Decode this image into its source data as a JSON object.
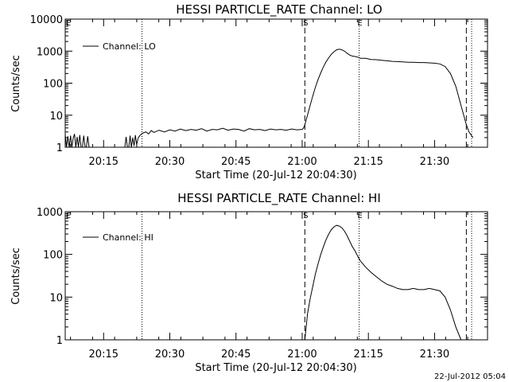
{
  "footer": {
    "timestamp": "22-Jul-2012 05:04"
  },
  "chart_data": [
    {
      "type": "line",
      "title": "HESSI PARTICLE_RATE Channel: LO",
      "xlabel": "Start Time (20-Jul-12 20:04:30)",
      "ylabel": "Counts/sec",
      "y_scale": "log",
      "xlim": [
        20.105,
        21.7
      ],
      "ylim": [
        1,
        10000
      ],
      "y_ticks": [
        {
          "v": 1,
          "label": "1"
        },
        {
          "v": 10,
          "label": "10"
        },
        {
          "v": 100,
          "label": "100"
        },
        {
          "v": 1000,
          "label": "1000"
        },
        {
          "v": 10000,
          "label": "10000"
        }
      ],
      "x_ticks": [
        {
          "v": 20.25,
          "label": "20:15"
        },
        {
          "v": 20.5,
          "label": "20:30"
        },
        {
          "v": 20.75,
          "label": "20:45"
        },
        {
          "v": 21.0,
          "label": "21:00"
        },
        {
          "v": 21.25,
          "label": "21:15"
        },
        {
          "v": 21.5,
          "label": "21:30"
        }
      ],
      "legend": {
        "label": "Channel: LO",
        "position": "top-left"
      },
      "markers": [
        {
          "x": 21.01,
          "style": "dashed",
          "label": "S"
        },
        {
          "x": 21.62,
          "style": "dashed",
          "label": ""
        },
        {
          "x": 20.395,
          "style": "dotted",
          "label": ""
        },
        {
          "x": 21.215,
          "style": "dotted",
          "label": "E"
        },
        {
          "x": 21.64,
          "style": "dotted",
          "label": ""
        }
      ],
      "edge_labels": [
        {
          "x": 20.105,
          "label": "E"
        }
      ],
      "series": [
        {
          "name": "Channel: LO",
          "segments": [
            {
              "x": [
                20.105,
                20.11,
                20.115,
                20.12,
                20.125,
                20.13,
                20.135,
                20.14,
                20.145,
                20.15,
                20.155,
                20.16,
                20.165,
                20.17,
                20.175,
                20.18,
                20.185,
                20.19,
                20.195,
                20.2
              ],
              "y": [
                2.5,
                1,
                2.2,
                1,
                2.3,
                1,
                1.9,
                2.6,
                1,
                2.1,
                1,
                2.4,
                1,
                1,
                2.3,
                1,
                1,
                2.2,
                1,
                1
              ]
            },
            {
              "x": [
                20.33,
                20.335,
                20.34,
                20.345,
                20.35,
                20.355,
                20.36,
                20.365,
                20.37,
                20.375,
                20.38,
                20.385,
                20.39
              ],
              "y": [
                1,
                2.1,
                1,
                1,
                2.3,
                1,
                2.0,
                1.1,
                2.4,
                1.2,
                1.9,
                2.2,
                2.5
              ]
            },
            {
              "x": [
                20.39,
                20.4,
                20.41,
                20.42,
                20.43,
                20.44,
                20.46,
                20.48,
                20.5,
                20.52,
                20.54,
                20.56,
                20.58,
                20.6,
                20.62,
                20.64,
                20.66,
                20.68,
                20.7,
                20.72,
                20.74,
                20.76,
                20.78,
                20.8,
                20.82,
                20.84,
                20.86,
                20.88,
                20.9,
                20.92,
                20.94,
                20.96,
                20.98,
                21.0,
                21.005,
                21.01
              ],
              "y": [
                2.5,
                2.8,
                3.0,
                2.6,
                3.3,
                2.9,
                3.4,
                3.0,
                3.5,
                3.2,
                3.7,
                3.3,
                3.6,
                3.4,
                3.8,
                3.2,
                3.6,
                3.5,
                3.9,
                3.4,
                3.7,
                3.6,
                3.2,
                3.8,
                3.5,
                3.6,
                3.3,
                3.7,
                3.5,
                3.6,
                3.4,
                3.7,
                3.5,
                3.6,
                4.0,
                5.0
              ]
            },
            {
              "x": [
                21.01,
                21.02,
                21.03,
                21.04,
                21.05,
                21.06,
                21.07,
                21.08,
                21.09,
                21.1,
                21.11,
                21.12,
                21.13,
                21.14,
                21.15,
                21.16,
                21.17,
                21.18,
                21.19,
                21.2,
                21.21,
                21.22,
                21.24,
                21.26,
                21.28,
                21.3,
                21.32,
                21.34,
                21.36,
                21.38,
                21.4,
                21.42,
                21.44,
                21.46,
                21.48,
                21.5,
                21.52,
                21.54,
                21.56,
                21.58,
                21.6,
                21.62,
                21.63,
                21.645
              ],
              "y": [
                5,
                10,
                20,
                40,
                75,
                130,
                210,
                320,
                460,
                620,
                800,
                950,
                1100,
                1150,
                1100,
                1000,
                850,
                750,
                700,
                680,
                650,
                600,
                600,
                550,
                540,
                520,
                500,
                480,
                470,
                460,
                450,
                450,
                440,
                440,
                430,
                420,
                400,
                330,
                200,
                80,
                20,
                5,
                3,
                2
              ]
            }
          ]
        }
      ]
    },
    {
      "type": "line",
      "title": "HESSI PARTICLE_RATE Channel: HI",
      "xlabel": "Start Time (20-Jul-12 20:04:30)",
      "ylabel": "Counts/sec",
      "y_scale": "log",
      "xlim": [
        20.105,
        21.7
      ],
      "ylim": [
        1,
        1000
      ],
      "y_ticks": [
        {
          "v": 1,
          "label": "1"
        },
        {
          "v": 10,
          "label": "10"
        },
        {
          "v": 100,
          "label": "100"
        },
        {
          "v": 1000,
          "label": "1000"
        }
      ],
      "x_ticks": [
        {
          "v": 20.25,
          "label": "20:15"
        },
        {
          "v": 20.5,
          "label": "20:30"
        },
        {
          "v": 20.75,
          "label": "20:45"
        },
        {
          "v": 21.0,
          "label": "21:00"
        },
        {
          "v": 21.25,
          "label": "21:15"
        },
        {
          "v": 21.5,
          "label": "21:30"
        }
      ],
      "legend": {
        "label": "Channel: HI",
        "position": "top-left"
      },
      "markers": [
        {
          "x": 21.01,
          "style": "dashed",
          "label": "S"
        },
        {
          "x": 21.62,
          "style": "dashed",
          "label": ""
        },
        {
          "x": 20.395,
          "style": "dotted",
          "label": ""
        },
        {
          "x": 21.215,
          "style": "dotted",
          "label": "E"
        },
        {
          "x": 21.64,
          "style": "dotted",
          "label": ""
        }
      ],
      "edge_labels": [
        {
          "x": 20.105,
          "label": "E"
        }
      ],
      "series": [
        {
          "name": "Channel: HI",
          "segments": [
            {
              "x": [
                21.01,
                21.015,
                21.02,
                21.03,
                21.04,
                21.05,
                21.06,
                21.07,
                21.08,
                21.09,
                21.1,
                21.11,
                21.12,
                21.13,
                21.14,
                21.15,
                21.16,
                21.17,
                21.18,
                21.19,
                21.2,
                21.21,
                21.22,
                21.24,
                21.26,
                21.28,
                21.3,
                21.32,
                21.34,
                21.36,
                21.38,
                21.4,
                21.42,
                21.44,
                21.46,
                21.48,
                21.5,
                21.52,
                21.54,
                21.56,
                21.58,
                21.6
              ],
              "y": [
                1,
                2,
                4,
                9,
                18,
                35,
                60,
                100,
                150,
                220,
                300,
                380,
                440,
                480,
                460,
                420,
                350,
                270,
                200,
                150,
                120,
                90,
                70,
                50,
                38,
                30,
                24,
                20,
                18,
                16,
                15,
                15,
                16,
                15,
                15,
                16,
                15,
                14,
                10,
                5,
                2,
                1
              ]
            }
          ]
        }
      ]
    }
  ]
}
